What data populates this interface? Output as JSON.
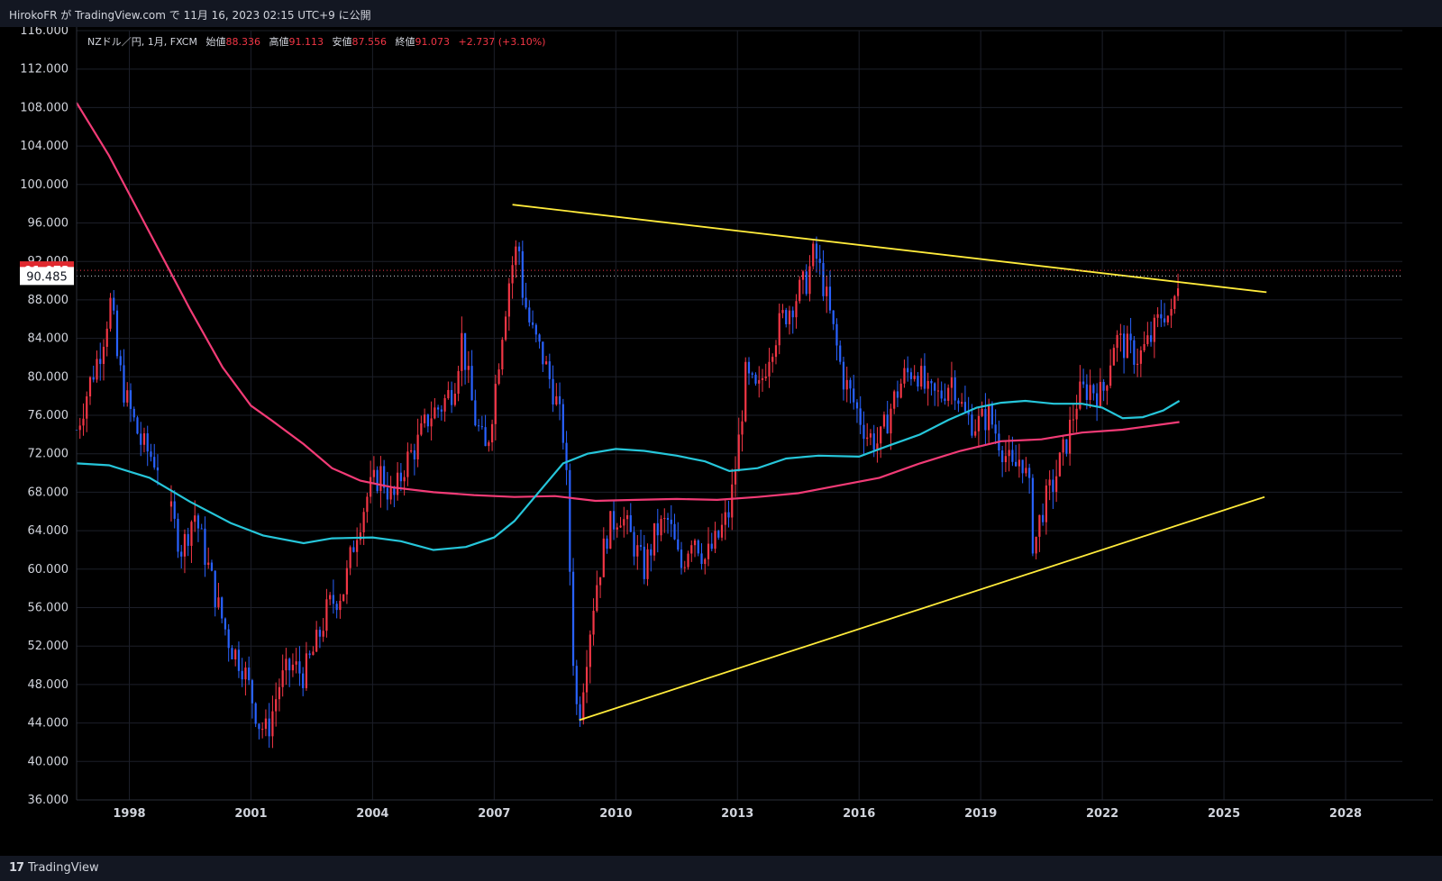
{
  "header": {
    "published_line": "HirokoFR が TradingView.com で 11月 16, 2023 02:15 UTC+9 に公開"
  },
  "legend": {
    "symbol": "NZドル／円, 1月, FXCM",
    "open_label": "始値",
    "open": "88.336",
    "high_label": "高値",
    "high": "91.113",
    "low_label": "安値",
    "low": "87.556",
    "close_label": "終値",
    "close": "91.073",
    "change": "+2.737 (+3.10%)"
  },
  "footer": {
    "logo_text": "TradingView"
  },
  "colors": {
    "background": "#000000",
    "up": "#f23645",
    "down": "#2962ff",
    "ma_long": "#f23b76",
    "ma_mid": "#26c6da",
    "trendline": "#ffeb3b",
    "price_tag": "#e0282e"
  },
  "chart_data": {
    "type": "candlestick",
    "symbol": "NZドル／円",
    "timeframe": "1月",
    "ylim": [
      36,
      116
    ],
    "y_ticks": [
      "116.000",
      "112.000",
      "108.000",
      "104.000",
      "100.000",
      "96.000",
      "92.000",
      "88.000",
      "84.000",
      "80.000",
      "76.000",
      "72.000",
      "68.000",
      "64.000",
      "60.000",
      "56.000",
      "52.000",
      "48.000",
      "44.000",
      "40.000",
      "36.000"
    ],
    "x_ticks": [
      "1998",
      "2001",
      "2004",
      "2007",
      "2010",
      "2013",
      "2016",
      "2019",
      "2022",
      "2025",
      "2028"
    ],
    "xlim": [
      1996.7,
      2029.4
    ],
    "price_markers": {
      "last": "91.073",
      "crosshair": "90.485"
    },
    "series": [
      {
        "kind": "price_path",
        "points": [
          [
            1996.7,
            74.5
          ],
          [
            1997.0,
            79
          ],
          [
            1997.3,
            83
          ],
          [
            1997.55,
            88
          ],
          [
            1997.7,
            82
          ],
          [
            1997.9,
            78
          ],
          [
            1998.1,
            75.5
          ],
          [
            1998.3,
            73
          ],
          [
            1998.5,
            72
          ],
          [
            1998.7,
            71
          ],
          [
            1998.8,
            68
          ],
          [
            1999.0,
            66
          ],
          [
            1999.3,
            62
          ],
          [
            1999.6,
            66
          ],
          [
            1999.9,
            61
          ],
          [
            2000.2,
            56
          ],
          [
            2000.5,
            52
          ],
          [
            2000.8,
            50
          ],
          [
            2001.0,
            47
          ],
          [
            2001.2,
            44
          ],
          [
            2001.4,
            43
          ],
          [
            2001.7,
            48
          ],
          [
            2002.0,
            50
          ],
          [
            2002.3,
            49
          ],
          [
            2002.6,
            52
          ],
          [
            2002.9,
            56
          ],
          [
            2003.3,
            58
          ],
          [
            2003.6,
            64
          ],
          [
            2003.9,
            68
          ],
          [
            2004.2,
            70
          ],
          [
            2004.5,
            67
          ],
          [
            2004.8,
            71
          ],
          [
            2005.1,
            73
          ],
          [
            2005.4,
            76
          ],
          [
            2005.7,
            77
          ],
          [
            2006.0,
            79
          ],
          [
            2006.2,
            84
          ],
          [
            2006.5,
            76
          ],
          [
            2006.8,
            72
          ],
          [
            2007.0,
            78
          ],
          [
            2007.2,
            85
          ],
          [
            2007.4,
            91
          ],
          [
            2007.6,
            94
          ],
          [
            2007.7,
            89
          ],
          [
            2007.9,
            85
          ],
          [
            2008.2,
            82
          ],
          [
            2008.5,
            78
          ],
          [
            2008.7,
            74
          ],
          [
            2008.8,
            68
          ],
          [
            2008.9,
            56
          ],
          [
            2009.0,
            46
          ],
          [
            2009.1,
            45
          ],
          [
            2009.3,
            52
          ],
          [
            2009.5,
            58
          ],
          [
            2009.8,
            64
          ],
          [
            2010.1,
            66
          ],
          [
            2010.4,
            63
          ],
          [
            2010.7,
            60
          ],
          [
            2011.0,
            64
          ],
          [
            2011.3,
            65
          ],
          [
            2011.6,
            60
          ],
          [
            2011.9,
            64
          ],
          [
            2012.2,
            61
          ],
          [
            2012.5,
            63
          ],
          [
            2012.8,
            66
          ],
          [
            2013.0,
            72
          ],
          [
            2013.2,
            80
          ],
          [
            2013.5,
            78
          ],
          [
            2013.8,
            83
          ],
          [
            2014.1,
            86
          ],
          [
            2014.4,
            88
          ],
          [
            2014.7,
            90
          ],
          [
            2014.9,
            93
          ],
          [
            2015.1,
            90
          ],
          [
            2015.3,
            86
          ],
          [
            2015.6,
            80
          ],
          [
            2015.9,
            77
          ],
          [
            2016.2,
            74
          ],
          [
            2016.5,
            73
          ],
          [
            2016.8,
            77
          ],
          [
            2017.1,
            80
          ],
          [
            2017.4,
            81
          ],
          [
            2017.7,
            78
          ],
          [
            2018.0,
            78
          ],
          [
            2018.3,
            80
          ],
          [
            2018.6,
            76
          ],
          [
            2018.9,
            75
          ],
          [
            2019.2,
            76
          ],
          [
            2019.5,
            73
          ],
          [
            2019.8,
            70
          ],
          [
            2020.0,
            72
          ],
          [
            2020.2,
            68
          ],
          [
            2020.3,
            62
          ],
          [
            2020.5,
            66
          ],
          [
            2020.8,
            69
          ],
          [
            2021.1,
            73
          ],
          [
            2021.4,
            78
          ],
          [
            2021.7,
            79
          ],
          [
            2022.0,
            78
          ],
          [
            2022.3,
            84
          ],
          [
            2022.6,
            83
          ],
          [
            2022.9,
            82
          ],
          [
            2023.2,
            84
          ],
          [
            2023.5,
            87
          ],
          [
            2023.7,
            86
          ],
          [
            2023.9,
            91.07
          ]
        ]
      },
      {
        "kind": "moving_average",
        "name": "",
        "color": "ma_long",
        "points": [
          [
            1996.7,
            108.5
          ],
          [
            1997.5,
            103
          ],
          [
            1998.5,
            95
          ],
          [
            1999.5,
            87
          ],
          [
            2000.3,
            81
          ],
          [
            2001.0,
            77
          ],
          [
            2001.5,
            75.5
          ],
          [
            2002.3,
            73
          ],
          [
            2003.0,
            70.5
          ],
          [
            2003.7,
            69.2
          ],
          [
            2004.5,
            68.5
          ],
          [
            2005.5,
            68
          ],
          [
            2006.5,
            67.7
          ],
          [
            2007.5,
            67.5
          ],
          [
            2008.5,
            67.6
          ],
          [
            2009.5,
            67.1
          ],
          [
            2010.5,
            67.2
          ],
          [
            2011.5,
            67.3
          ],
          [
            2012.5,
            67.2
          ],
          [
            2013.5,
            67.5
          ],
          [
            2014.5,
            67.9
          ],
          [
            2015.5,
            68.7
          ],
          [
            2016.5,
            69.5
          ],
          [
            2017.5,
            71
          ],
          [
            2018.5,
            72.3
          ],
          [
            2019.5,
            73.3
          ],
          [
            2020.5,
            73.5
          ],
          [
            2021.5,
            74.2
          ],
          [
            2022.5,
            74.5
          ],
          [
            2023.9,
            75.3
          ]
        ]
      },
      {
        "kind": "moving_average",
        "name": "",
        "color": "ma_mid",
        "points": [
          [
            1996.7,
            71
          ],
          [
            1997.5,
            70.8
          ],
          [
            1998.5,
            69.5
          ],
          [
            1999.5,
            67
          ],
          [
            2000.5,
            64.8
          ],
          [
            2001.3,
            63.5
          ],
          [
            2002.3,
            62.7
          ],
          [
            2003.0,
            63.2
          ],
          [
            2004.0,
            63.3
          ],
          [
            2004.7,
            62.9
          ],
          [
            2005.5,
            62
          ],
          [
            2006.3,
            62.3
          ],
          [
            2007.0,
            63.3
          ],
          [
            2007.5,
            65
          ],
          [
            2008.2,
            68.5
          ],
          [
            2008.7,
            71
          ],
          [
            2009.3,
            72
          ],
          [
            2010.0,
            72.5
          ],
          [
            2010.7,
            72.3
          ],
          [
            2011.5,
            71.8
          ],
          [
            2012.2,
            71.2
          ],
          [
            2012.8,
            70.2
          ],
          [
            2013.5,
            70.5
          ],
          [
            2014.2,
            71.5
          ],
          [
            2015.0,
            71.8
          ],
          [
            2016.0,
            71.7
          ],
          [
            2016.7,
            72.8
          ],
          [
            2017.5,
            74
          ],
          [
            2018.2,
            75.5
          ],
          [
            2018.9,
            76.8
          ],
          [
            2019.5,
            77.3
          ],
          [
            2020.1,
            77.5
          ],
          [
            2020.8,
            77.2
          ],
          [
            2021.5,
            77.2
          ],
          [
            2022.0,
            76.8
          ],
          [
            2022.5,
            75.7
          ],
          [
            2023.0,
            75.8
          ],
          [
            2023.5,
            76.5
          ],
          [
            2023.9,
            77.5
          ]
        ]
      },
      {
        "kind": "trendline",
        "color": "trendline",
        "points": [
          [
            2007.45,
            97.9
          ],
          [
            2026.05,
            88.8
          ]
        ]
      },
      {
        "kind": "trendline",
        "color": "trendline",
        "points": [
          [
            2009.1,
            44.3
          ],
          [
            2026.0,
            67.5
          ]
        ]
      }
    ]
  }
}
